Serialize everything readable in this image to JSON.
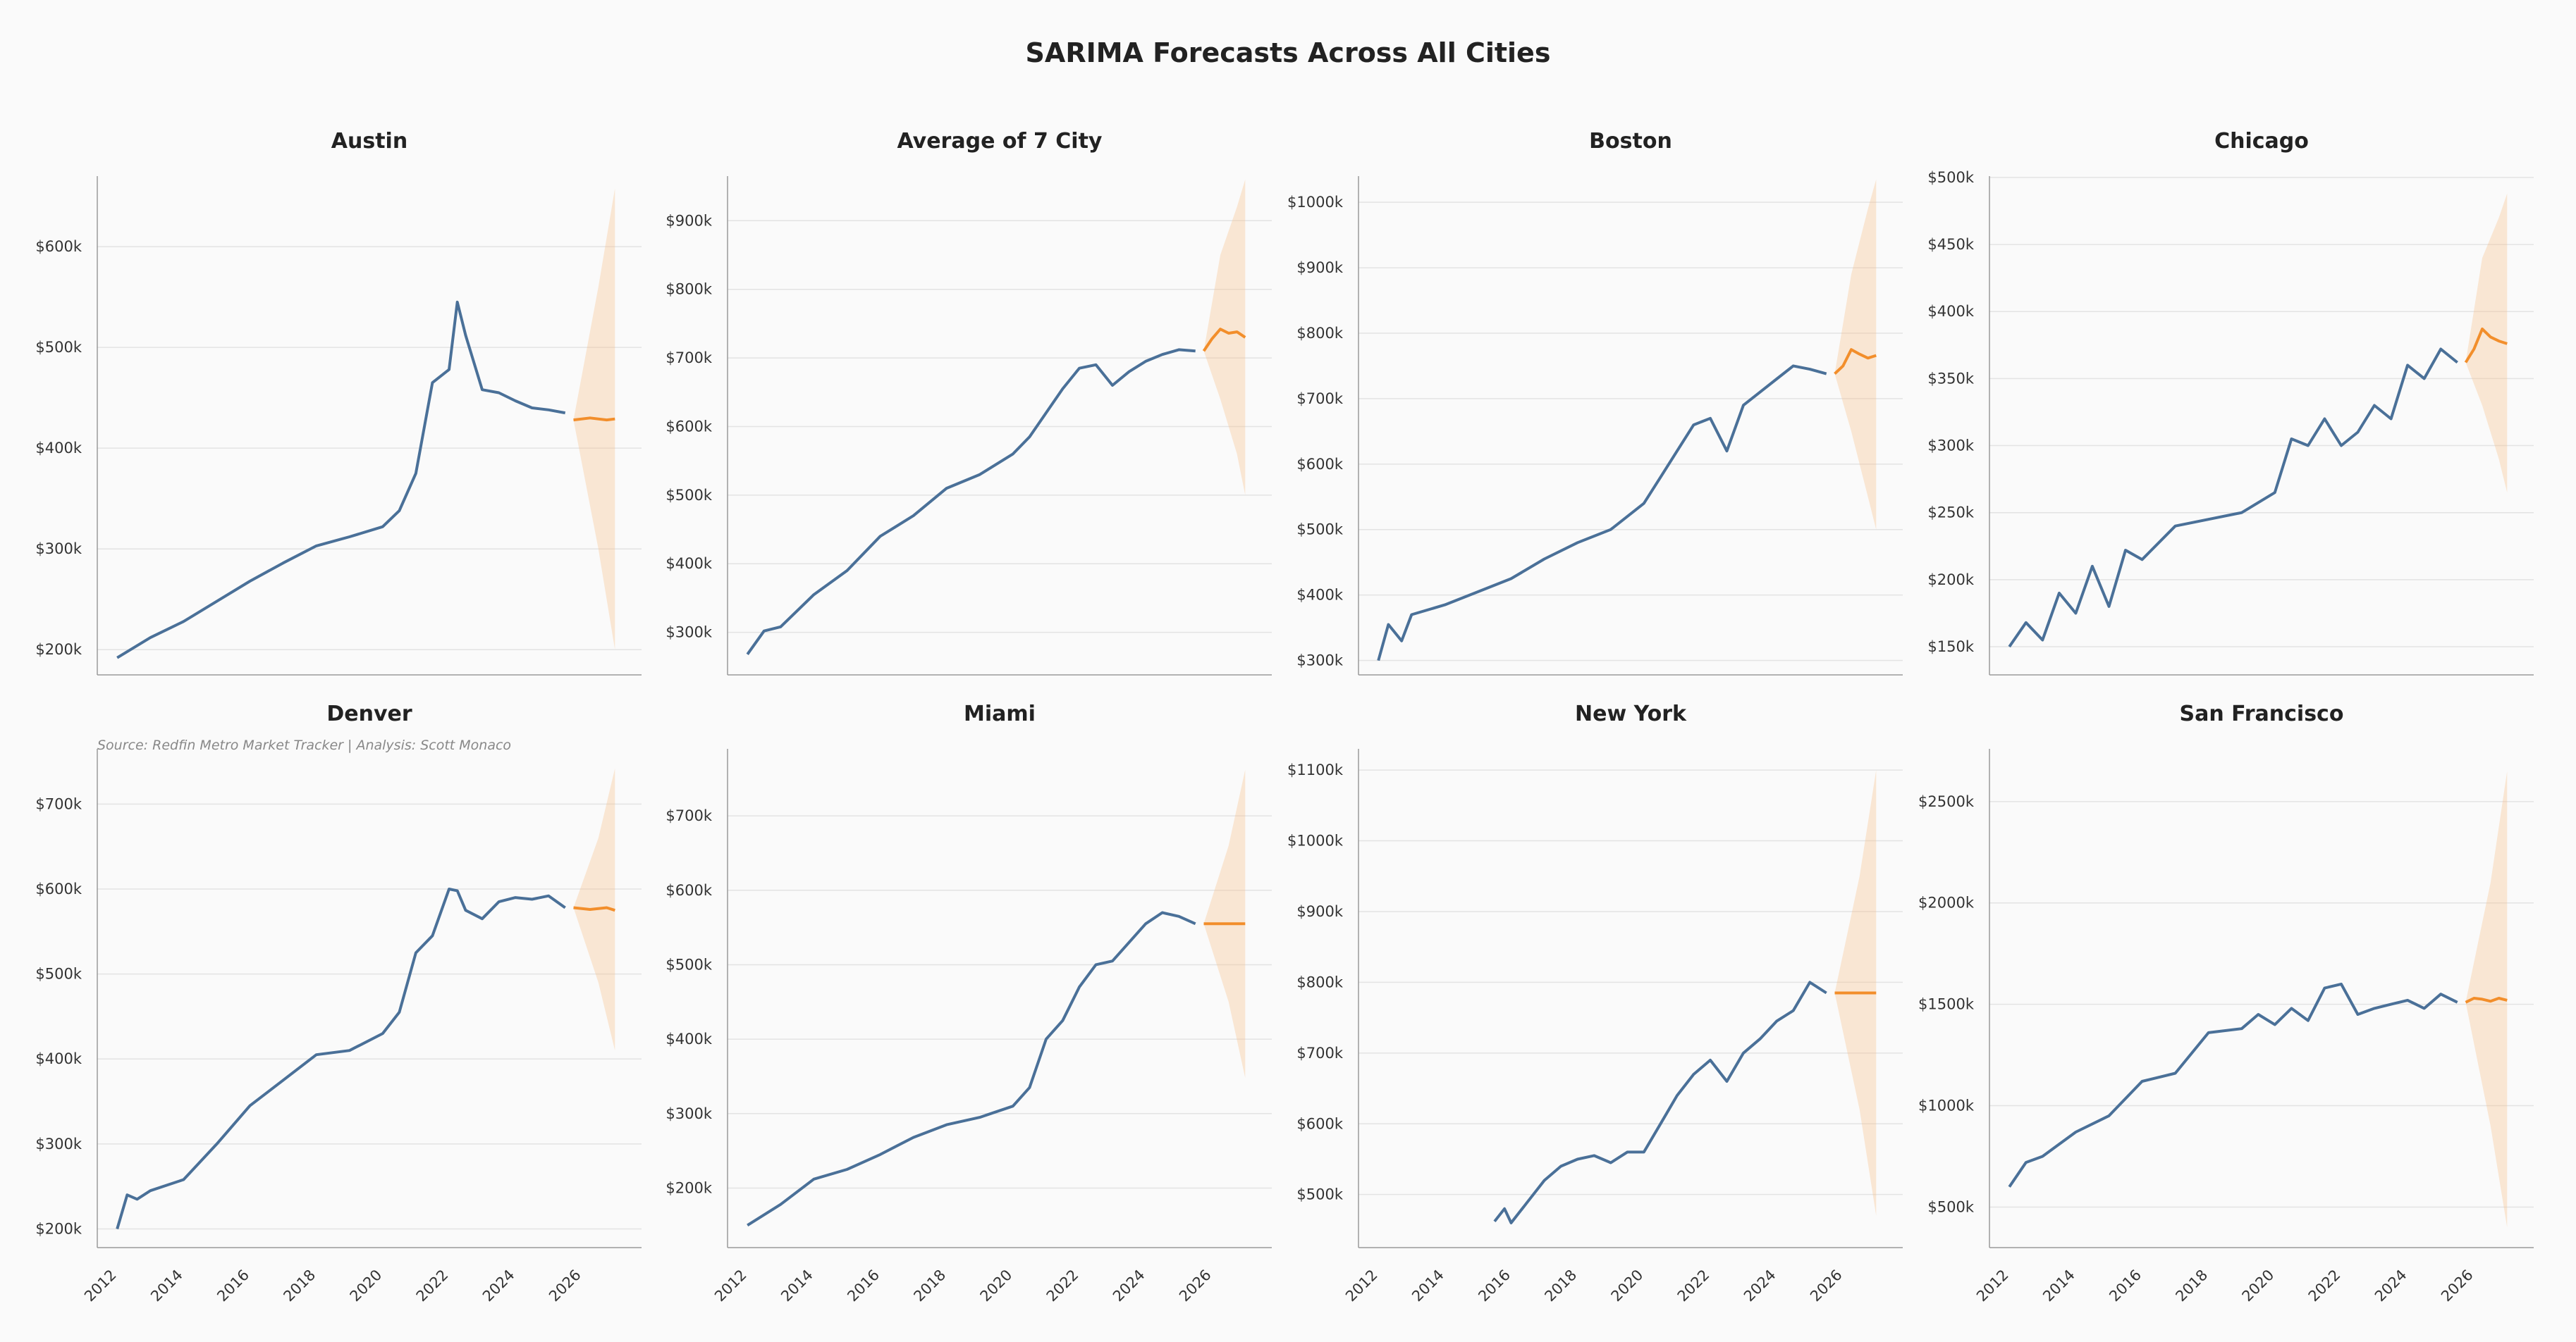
{
  "figure": {
    "title": "SARIMA Forecasts Across All Cities",
    "source": "Source: Redfin Metro Market Tracker | Analysis: Scott Monaco",
    "colors": {
      "history": "#4a7098",
      "forecast": "#f28e2b",
      "interval": "#f6c08a"
    }
  },
  "chart_data": [
    {
      "type": "line",
      "title": "Austin",
      "xlim": [
        2011.4,
        2027.8
      ],
      "ylim": [
        175000,
        670000
      ],
      "yticks": [
        200000,
        300000,
        400000,
        500000,
        600000
      ],
      "ytick_labels": [
        "$200k",
        "$300k",
        "$400k",
        "$500k",
        "$600k"
      ],
      "history": {
        "x": [
          2012.0,
          2013.0,
          2014.0,
          2015.0,
          2016.0,
          2017.0,
          2018.0,
          2019.0,
          2020.0,
          2020.5,
          2021.0,
          2021.5,
          2022.0,
          2022.25,
          2022.5,
          2023.0,
          2023.5,
          2024.0,
          2024.5,
          2025.0,
          2025.5
        ],
        "y": [
          192000,
          212000,
          228000,
          248000,
          268000,
          286000,
          303000,
          312000,
          322000,
          338000,
          375000,
          465000,
          478000,
          545000,
          512000,
          458000,
          455000,
          447000,
          440000,
          438000,
          435000
        ]
      },
      "forecast": {
        "x": [
          2025.75,
          2026.25,
          2026.75,
          2027.0
        ],
        "y": [
          428000,
          430000,
          428000,
          429000
        ]
      },
      "interval": {
        "x": [
          2025.75,
          2026.5,
          2027.0
        ],
        "lower": [
          428000,
          300000,
          200000
        ],
        "upper": [
          428000,
          560000,
          658000
        ]
      }
    },
    {
      "type": "line",
      "title": "Average of 7 City",
      "xlim": [
        2011.4,
        2027.8
      ],
      "ylim": [
        238000,
        965000
      ],
      "yticks": [
        300000,
        400000,
        500000,
        600000,
        700000,
        800000,
        900000
      ],
      "ytick_labels": [
        "$300k",
        "$400k",
        "$500k",
        "$600k",
        "$700k",
        "$800k",
        "$900k"
      ],
      "history": {
        "x": [
          2012.0,
          2012.5,
          2013.0,
          2014.0,
          2015.0,
          2016.0,
          2017.0,
          2018.0,
          2019.0,
          2020.0,
          2020.5,
          2021.0,
          2021.5,
          2022.0,
          2022.5,
          2023.0,
          2023.5,
          2024.0,
          2024.5,
          2025.0,
          2025.5
        ],
        "y": [
          268000,
          302000,
          308000,
          355000,
          390000,
          440000,
          470000,
          510000,
          530000,
          560000,
          585000,
          620000,
          655000,
          685000,
          690000,
          660000,
          680000,
          695000,
          705000,
          712000,
          710000
        ]
      },
      "forecast": {
        "x": [
          2025.75,
          2026.0,
          2026.25,
          2026.5,
          2026.75,
          2027.0
        ],
        "y": [
          710000,
          728000,
          742000,
          736000,
          738000,
          730000
        ]
      },
      "interval": {
        "x": [
          2025.75,
          2026.25,
          2026.75,
          2027.0
        ],
        "lower": [
          710000,
          640000,
          560000,
          500000
        ],
        "upper": [
          710000,
          850000,
          920000,
          960000
        ]
      }
    },
    {
      "type": "line",
      "title": "Boston",
      "xlim": [
        2011.4,
        2027.8
      ],
      "ylim": [
        278000,
        1040000
      ],
      "yticks": [
        300000,
        400000,
        500000,
        600000,
        700000,
        800000,
        900000,
        1000000
      ],
      "ytick_labels": [
        "$300k",
        "$400k",
        "$500k",
        "$600k",
        "$700k",
        "$800k",
        "$900k",
        "$1000k"
      ],
      "history": {
        "x": [
          2012.0,
          2012.3,
          2012.7,
          2013.0,
          2014.0,
          2015.0,
          2016.0,
          2017.0,
          2018.0,
          2019.0,
          2020.0,
          2020.5,
          2021.0,
          2021.5,
          2022.0,
          2022.5,
          2023.0,
          2023.5,
          2024.0,
          2024.5,
          2025.0,
          2025.5
        ],
        "y": [
          300000,
          355000,
          330000,
          370000,
          385000,
          405000,
          425000,
          455000,
          480000,
          500000,
          540000,
          580000,
          620000,
          660000,
          670000,
          620000,
          690000,
          710000,
          730000,
          750000,
          745000,
          738000
        ]
      },
      "forecast": {
        "x": [
          2025.75,
          2026.0,
          2026.25,
          2026.5,
          2026.75,
          2027.0
        ],
        "y": [
          738000,
          750000,
          775000,
          768000,
          762000,
          766000
        ]
      },
      "interval": {
        "x": [
          2025.75,
          2026.25,
          2026.75,
          2027.0
        ],
        "lower": [
          738000,
          650000,
          550000,
          500000
        ],
        "upper": [
          738000,
          890000,
          990000,
          1035000
        ]
      }
    },
    {
      "type": "line",
      "title": "Chicago",
      "xlim": [
        2011.4,
        2027.8
      ],
      "ylim": [
        129000,
        501000
      ],
      "yticks": [
        150000,
        200000,
        250000,
        300000,
        350000,
        400000,
        450000,
        500000
      ],
      "ytick_labels": [
        "$150k",
        "$200k",
        "$250k",
        "$300k",
        "$350k",
        "$400k",
        "$450k",
        "$500k"
      ],
      "history": {
        "x": [
          2012.0,
          2012.5,
          2013.0,
          2013.5,
          2014.0,
          2014.5,
          2015.0,
          2015.5,
          2016.0,
          2017.0,
          2018.0,
          2019.0,
          2020.0,
          2020.5,
          2021.0,
          2021.5,
          2022.0,
          2022.5,
          2023.0,
          2023.5,
          2024.0,
          2024.5,
          2025.0,
          2025.5
        ],
        "y": [
          150000,
          168000,
          155000,
          190000,
          175000,
          210000,
          180000,
          222000,
          215000,
          240000,
          245000,
          250000,
          265000,
          305000,
          300000,
          320000,
          300000,
          310000,
          330000,
          320000,
          360000,
          350000,
          372000,
          362000
        ]
      },
      "forecast": {
        "x": [
          2025.75,
          2026.0,
          2026.25,
          2026.5,
          2026.75,
          2027.0
        ],
        "y": [
          362000,
          372000,
          387000,
          381000,
          378000,
          376000
        ]
      },
      "interval": {
        "x": [
          2025.75,
          2026.25,
          2026.75,
          2027.0
        ],
        "lower": [
          362000,
          330000,
          290000,
          265000
        ],
        "upper": [
          362000,
          440000,
          470000,
          488000
        ]
      }
    },
    {
      "type": "line",
      "title": "Denver",
      "xlim": [
        2011.4,
        2027.8
      ],
      "ylim": [
        178000,
        765000
      ],
      "yticks": [
        200000,
        300000,
        400000,
        500000,
        600000,
        700000
      ],
      "ytick_labels": [
        "$200k",
        "$300k",
        "$400k",
        "$500k",
        "$600k",
        "$700k"
      ],
      "history": {
        "x": [
          2012.0,
          2012.3,
          2012.6,
          2013.0,
          2014.0,
          2015.0,
          2016.0,
          2017.0,
          2018.0,
          2019.0,
          2020.0,
          2020.5,
          2021.0,
          2021.5,
          2022.0,
          2022.25,
          2022.5,
          2023.0,
          2023.5,
          2024.0,
          2024.5,
          2025.0,
          2025.5
        ],
        "y": [
          200000,
          240000,
          235000,
          245000,
          258000,
          300000,
          345000,
          375000,
          405000,
          410000,
          430000,
          455000,
          525000,
          545000,
          600000,
          598000,
          575000,
          565000,
          585000,
          590000,
          588000,
          592000,
          578000
        ]
      },
      "forecast": {
        "x": [
          2025.75,
          2026.25,
          2026.75,
          2027.0
        ],
        "y": [
          578000,
          576000,
          578000,
          575000
        ]
      },
      "interval": {
        "x": [
          2025.75,
          2026.5,
          2027.0
        ],
        "lower": [
          578000,
          490000,
          410000
        ],
        "upper": [
          578000,
          660000,
          742000
        ]
      }
    },
    {
      "type": "line",
      "title": "Miami",
      "xlim": [
        2011.4,
        2027.8
      ],
      "ylim": [
        120000,
        790000
      ],
      "yticks": [
        200000,
        300000,
        400000,
        500000,
        600000,
        700000
      ],
      "ytick_labels": [
        "$200k",
        "$300k",
        "$400k",
        "$500k",
        "$600k",
        "$700k"
      ],
      "history": {
        "x": [
          2012.0,
          2013.0,
          2014.0,
          2015.0,
          2016.0,
          2017.0,
          2018.0,
          2019.0,
          2020.0,
          2020.5,
          2021.0,
          2021.5,
          2022.0,
          2022.5,
          2023.0,
          2023.5,
          2024.0,
          2024.5,
          2025.0,
          2025.5
        ],
        "y": [
          150000,
          178000,
          212000,
          225000,
          245000,
          268000,
          285000,
          295000,
          310000,
          335000,
          400000,
          425000,
          470000,
          500000,
          505000,
          530000,
          555000,
          570000,
          565000,
          555000
        ]
      },
      "forecast": {
        "x": [
          2025.75,
          2026.25,
          2026.75,
          2027.0
        ],
        "y": [
          555000,
          555000,
          555000,
          555000
        ]
      },
      "interval": {
        "x": [
          2025.75,
          2026.5,
          2027.0
        ],
        "lower": [
          555000,
          450000,
          348000
        ],
        "upper": [
          555000,
          660000,
          762000
        ]
      }
    },
    {
      "type": "line",
      "title": "New York",
      "xlim": [
        2011.4,
        2027.8
      ],
      "ylim": [
        425000,
        1130000
      ],
      "yticks": [
        500000,
        600000,
        700000,
        800000,
        900000,
        1000000,
        1100000
      ],
      "ytick_labels": [
        "$500k",
        "$600k",
        "$700k",
        "$800k",
        "$900k",
        "$1000k",
        "$1100k"
      ],
      "history": {
        "x": [
          2015.5,
          2015.8,
          2016.0,
          2016.5,
          2017.0,
          2017.5,
          2018.0,
          2018.5,
          2019.0,
          2019.5,
          2020.0,
          2020.5,
          2021.0,
          2021.5,
          2022.0,
          2022.5,
          2023.0,
          2023.5,
          2024.0,
          2024.5,
          2025.0,
          2025.5
        ],
        "y": [
          462000,
          480000,
          460000,
          490000,
          520000,
          540000,
          550000,
          555000,
          545000,
          560000,
          560000,
          600000,
          640000,
          670000,
          690000,
          660000,
          700000,
          720000,
          745000,
          760000,
          800000,
          785000
        ]
      },
      "forecast": {
        "x": [
          2025.75,
          2026.25,
          2026.75,
          2027.0
        ],
        "y": [
          785000,
          785000,
          785000,
          785000
        ]
      },
      "interval": {
        "x": [
          2025.75,
          2026.5,
          2027.0
        ],
        "lower": [
          785000,
          620000,
          470000
        ],
        "upper": [
          785000,
          950000,
          1100000
        ]
      }
    },
    {
      "type": "line",
      "title": "San Francisco",
      "xlim": [
        2011.4,
        2027.8
      ],
      "ylim": [
        300000,
        2760000
      ],
      "yticks": [
        500000,
        1000000,
        1500000,
        2000000,
        2500000
      ],
      "ytick_labels": [
        "$500k",
        "$1000k",
        "$1500k",
        "$2000k",
        "$2500k"
      ],
      "history": {
        "x": [
          2012.0,
          2012.5,
          2013.0,
          2014.0,
          2015.0,
          2016.0,
          2017.0,
          2018.0,
          2019.0,
          2019.5,
          2020.0,
          2020.5,
          2021.0,
          2021.5,
          2022.0,
          2022.5,
          2023.0,
          2023.5,
          2024.0,
          2024.5,
          2025.0,
          2025.5
        ],
        "y": [
          600000,
          720000,
          750000,
          870000,
          950000,
          1120000,
          1160000,
          1360000,
          1380000,
          1450000,
          1400000,
          1480000,
          1420000,
          1580000,
          1600000,
          1450000,
          1480000,
          1500000,
          1520000,
          1480000,
          1550000,
          1510000
        ]
      },
      "forecast": {
        "x": [
          2025.75,
          2026.0,
          2026.25,
          2026.5,
          2026.75,
          2027.0
        ],
        "y": [
          1510000,
          1530000,
          1525000,
          1515000,
          1530000,
          1520000
        ]
      },
      "interval": {
        "x": [
          2025.75,
          2026.5,
          2027.0
        ],
        "lower": [
          1510000,
          900000,
          400000
        ],
        "upper": [
          1510000,
          2100000,
          2650000
        ]
      }
    }
  ],
  "x_axis": {
    "ticks": [
      2012,
      2014,
      2016,
      2018,
      2020,
      2022,
      2024,
      2026
    ],
    "labels": [
      "2012",
      "2014",
      "2016",
      "2018",
      "2020",
      "2022",
      "2024",
      "2026"
    ]
  }
}
